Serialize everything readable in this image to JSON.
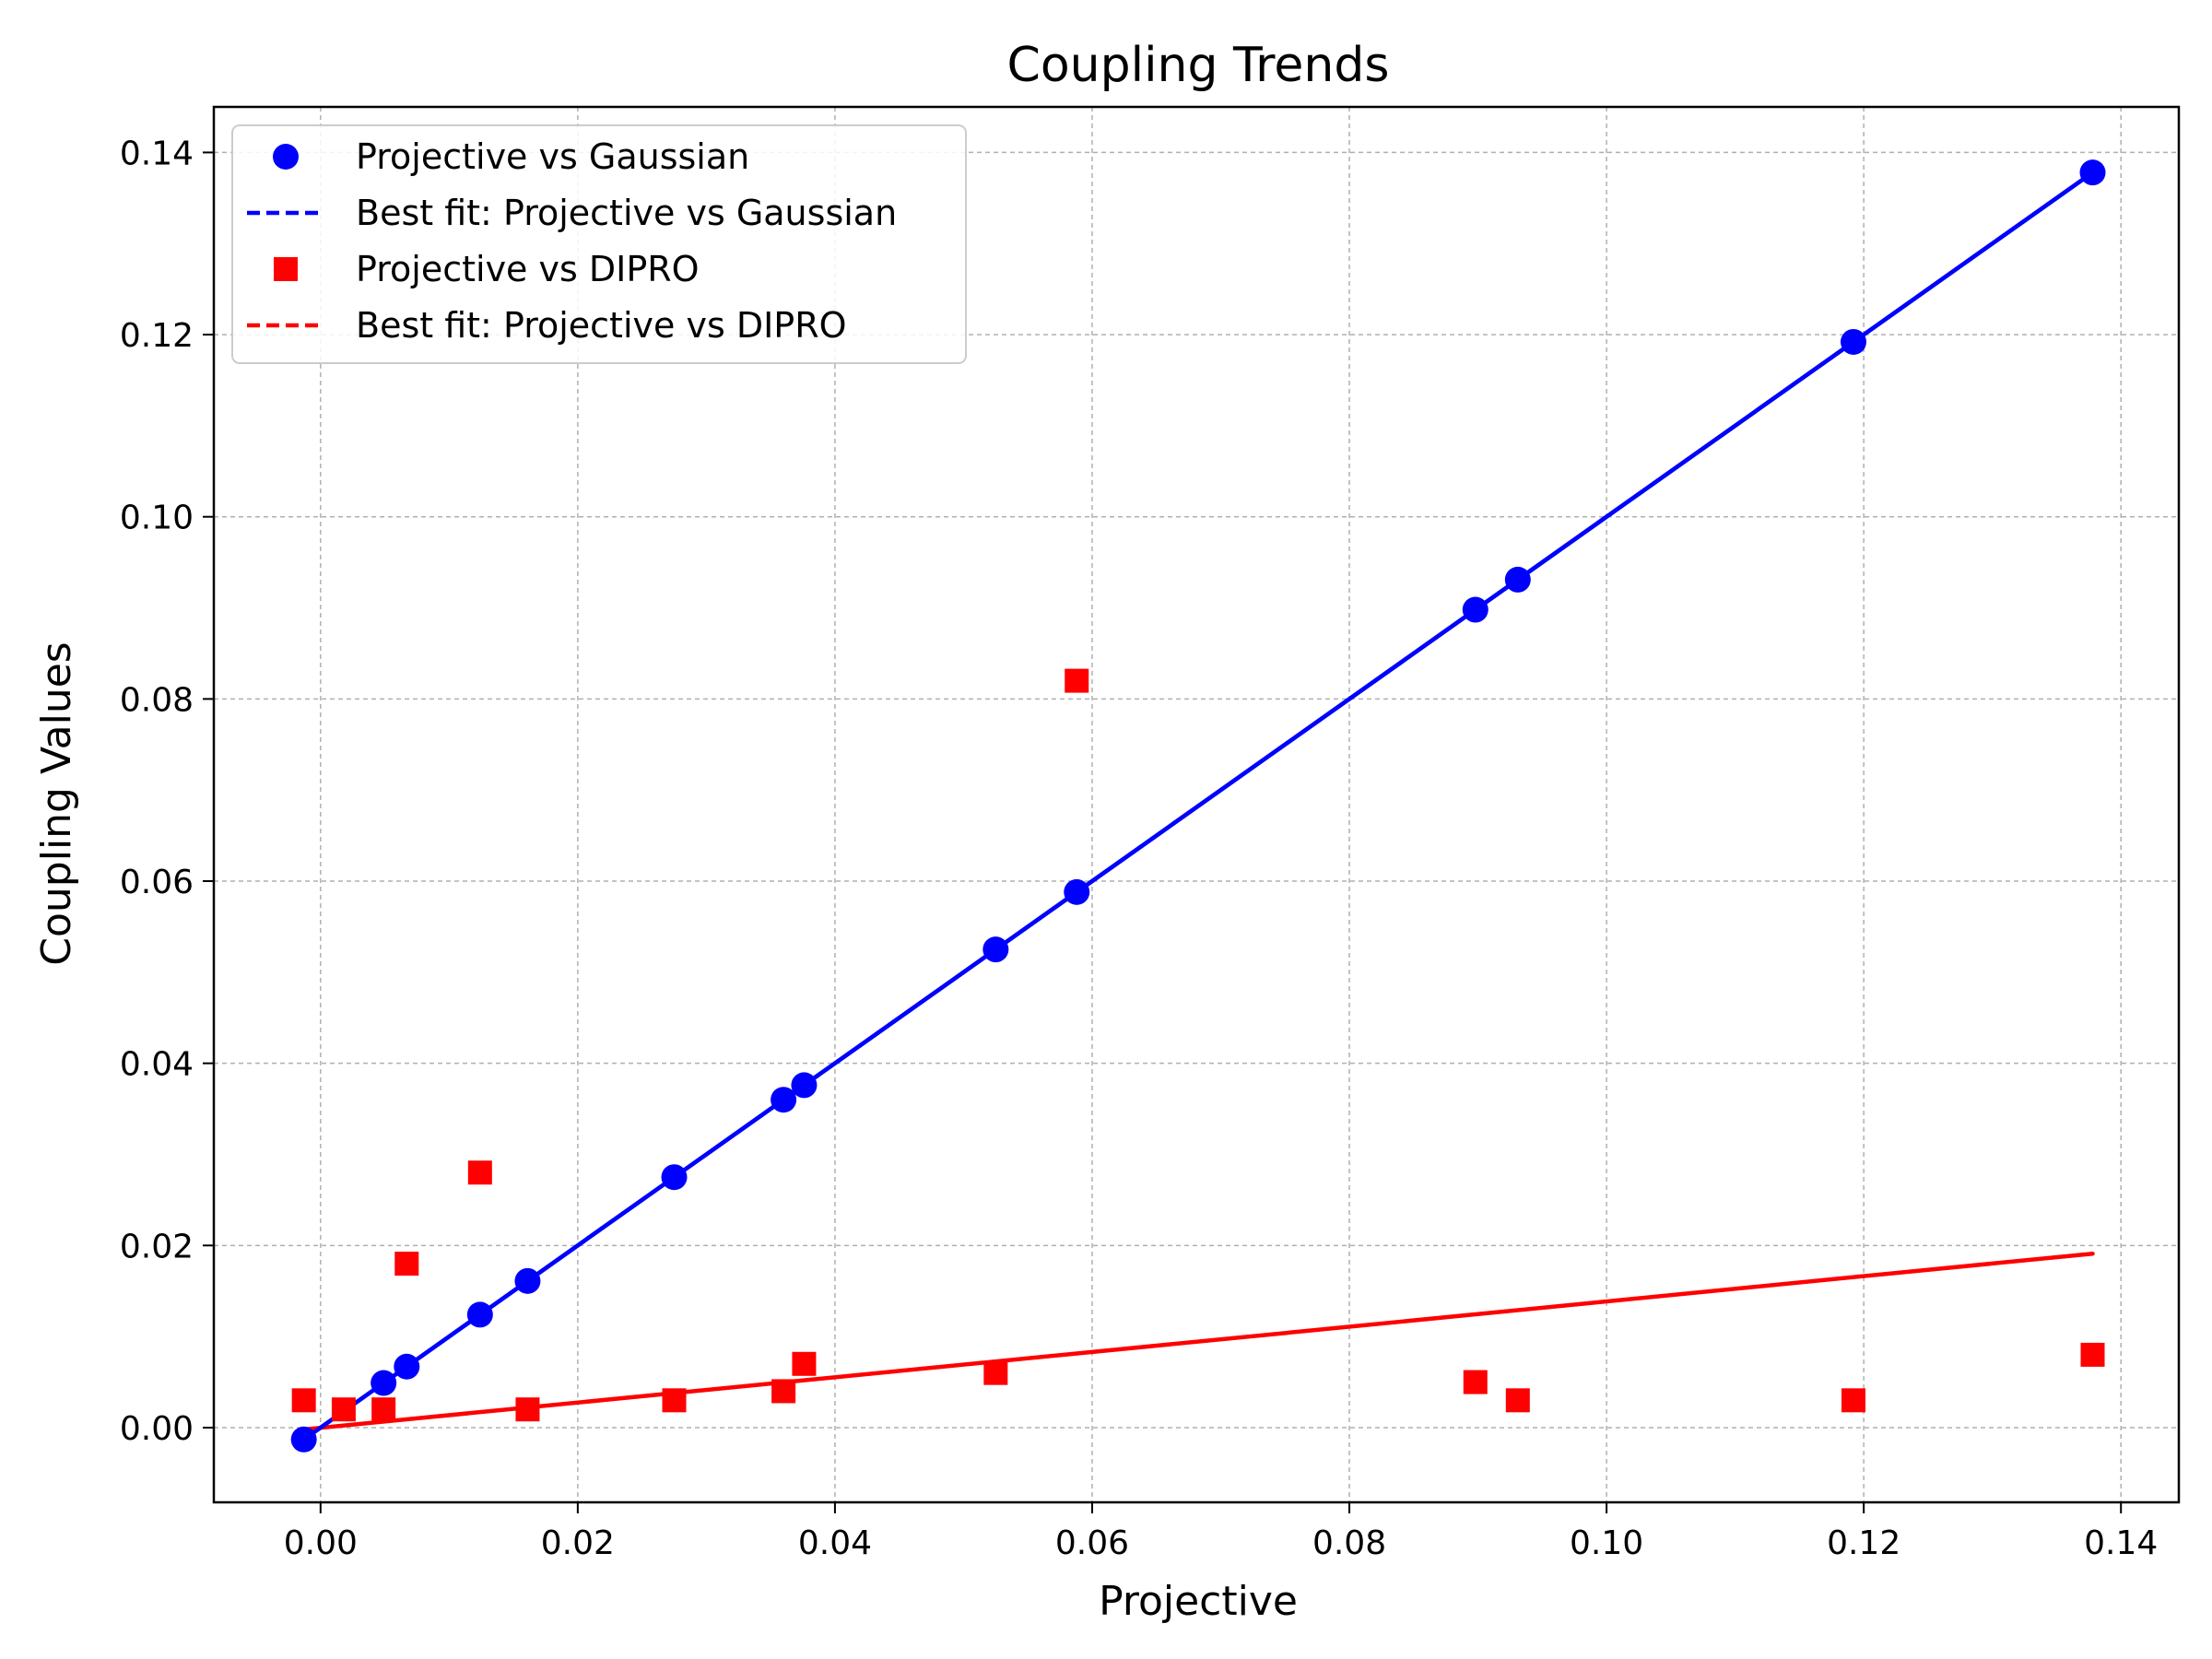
{
  "chart_data": {
    "type": "scatter",
    "title": "Coupling Trends",
    "xlabel": "Projective",
    "ylabel": "Coupling Values",
    "xlim": [
      -0.0083,
      0.1445
    ],
    "ylim": [
      -0.0082,
      0.145
    ],
    "xticks": [
      "0.00",
      "0.02",
      "0.04",
      "0.06",
      "0.08",
      "0.10",
      "0.12",
      "0.14"
    ],
    "yticks": [
      "0.00",
      "0.02",
      "0.04",
      "0.06",
      "0.08",
      "0.10",
      "0.12",
      "0.14"
    ],
    "xtick_values": [
      0.0,
      0.02,
      0.04,
      0.06,
      0.08,
      0.1,
      0.12,
      0.14
    ],
    "ytick_values": [
      0.0,
      0.02,
      0.04,
      0.06,
      0.08,
      0.1,
      0.12,
      0.14
    ],
    "grid": true,
    "legend_position": "top-left",
    "series": [
      {
        "name": "Projective vs Gaussian",
        "kind": "scatter",
        "marker": "circle",
        "color": "#0000ff",
        "x": [
          -0.0013,
          0.0049,
          0.0067,
          0.0124,
          0.0161,
          0.0275,
          0.036,
          0.0376,
          0.0525,
          0.0588,
          0.0898,
          0.0931,
          0.1192,
          0.1378
        ],
        "y": [
          -0.0013,
          0.0049,
          0.0067,
          0.0124,
          0.0161,
          0.0275,
          0.036,
          0.0376,
          0.0525,
          0.0588,
          0.0898,
          0.0931,
          0.1192,
          0.1378
        ]
      },
      {
        "name": "Best fit: Projective vs Gaussian",
        "kind": "line",
        "style": "dashed",
        "color": "#0000ff",
        "x": [
          -0.0013,
          0.1378
        ],
        "y": [
          -0.0013,
          0.1378
        ]
      },
      {
        "name": "Projective vs DIPRO",
        "kind": "scatter",
        "marker": "square",
        "color": "#ff0000",
        "x": [
          -0.0013,
          0.0018,
          0.0049,
          0.0067,
          0.0124,
          0.0161,
          0.0275,
          0.036,
          0.0376,
          0.0525,
          0.0588,
          0.0898,
          0.0931,
          0.1192,
          0.1378
        ],
        "y": [
          0.003,
          0.002,
          0.002,
          0.018,
          0.028,
          0.002,
          0.003,
          0.004,
          0.007,
          0.006,
          0.082,
          0.005,
          0.003,
          0.003,
          0.008
        ]
      },
      {
        "name": "Best fit: Projective vs DIPRO",
        "kind": "line",
        "style": "dashed",
        "color": "#ff0000",
        "x": [
          -0.0013,
          0.1378
        ],
        "y": [
          -0.0002,
          0.0191
        ]
      }
    ]
  }
}
